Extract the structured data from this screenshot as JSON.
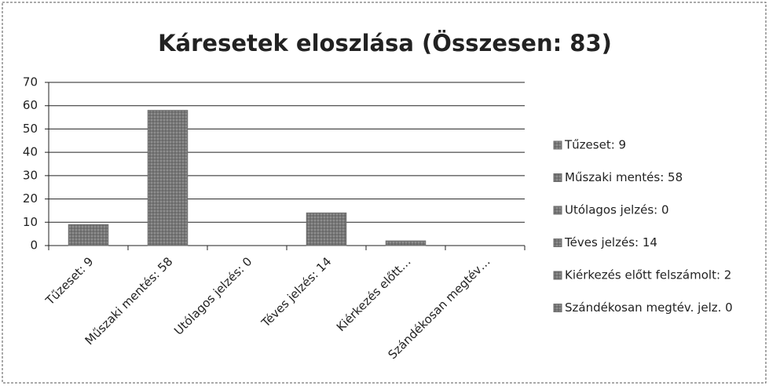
{
  "chart_data": {
    "type": "bar",
    "title": "Káresetek eloszlása (Összesen: 83)",
    "categories": [
      "Tűzeset: 9",
      "Műszaki mentés: 58",
      "Utólagos jelzés: 0",
      "Téves jelzés: 14",
      "Kiérkezés előtt…",
      "Szándékosan megtév…"
    ],
    "values": [
      9,
      58,
      0,
      14,
      2,
      0
    ],
    "legend_labels": [
      "Tűzeset: 9",
      "Műszaki mentés: 58",
      "Utólagos jelzés: 0",
      "Téves jelzés: 14",
      "Kiérkezés előtt felszámolt: 2",
      "Szándékosan megtév. jelz. 0"
    ],
    "color": "#6e6e6e",
    "ylim": [
      0,
      70
    ],
    "yticks": [
      0,
      10,
      20,
      30,
      40,
      50,
      60,
      70
    ],
    "grid": true,
    "legend": "right"
  }
}
